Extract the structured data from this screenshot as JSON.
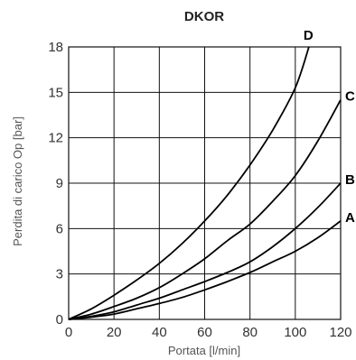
{
  "chart_data": {
    "type": "line",
    "title": "DKOR",
    "xlabel": "Portata [l/min]",
    "ylabel": "Perdita di carico Op [bar]",
    "xlim": [
      0,
      120
    ],
    "ylim": [
      0,
      18
    ],
    "xticks": [
      "0",
      "20",
      "40",
      "60",
      "80",
      "100",
      "120"
    ],
    "yticks": [
      "0",
      "3",
      "6",
      "9",
      "12",
      "15",
      "18"
    ],
    "grid": true,
    "x": [
      0,
      10,
      20,
      30,
      40,
      50,
      60,
      70,
      80,
      90,
      100,
      110,
      120
    ],
    "series": [
      {
        "name": "D",
        "values": [
          0,
          0.7,
          1.6,
          2.6,
          3.7,
          5.0,
          6.5,
          8.2,
          10.2,
          12.5,
          15.3,
          null,
          null
        ],
        "end": [
          106,
          18
        ]
      },
      {
        "name": "C",
        "values": [
          0,
          0.35,
          0.85,
          1.4,
          2.1,
          3.0,
          4.0,
          5.2,
          6.3,
          7.8,
          9.5,
          11.8,
          14.5
        ]
      },
      {
        "name": "B",
        "values": [
          0,
          0.2,
          0.5,
          0.95,
          1.4,
          1.95,
          2.5,
          3.1,
          3.8,
          4.8,
          6.0,
          7.4,
          9.0
        ]
      },
      {
        "name": "A",
        "values": [
          0,
          0.15,
          0.35,
          0.7,
          1.05,
          1.45,
          1.95,
          2.5,
          3.1,
          3.8,
          4.5,
          5.4,
          6.5
        ]
      }
    ]
  }
}
